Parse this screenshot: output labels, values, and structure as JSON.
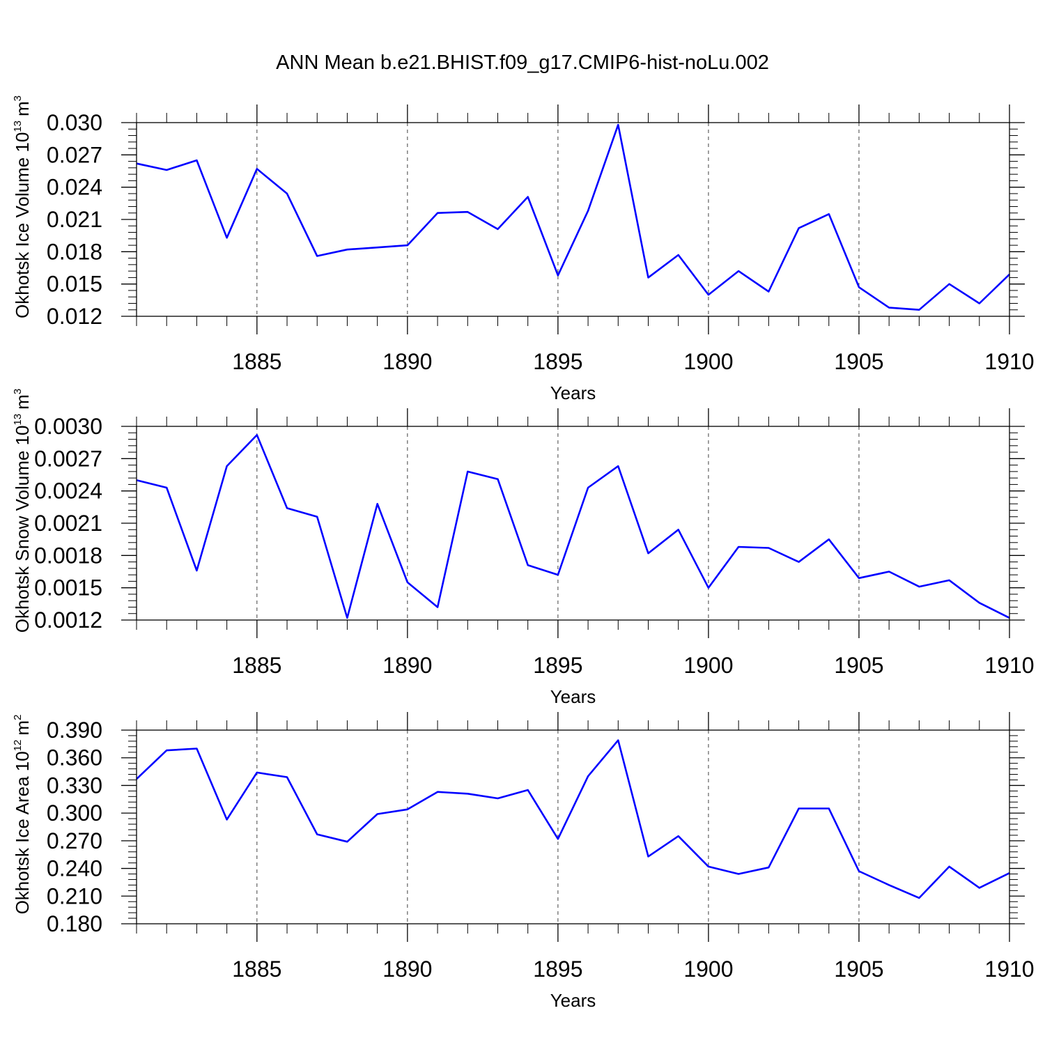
{
  "title": "ANN Mean b.e21.BHIST.f09_g17.CMIP6-hist-noLu.002",
  "chart_data": [
    {
      "type": "line",
      "xlabel": "Years",
      "ylabel": "Okhotsk Ice Volume 10",
      "ylabel_exp": "13",
      "ylabel_unit": "m",
      "ylabel_unit_exp": "3",
      "xlim": [
        1881,
        1910
      ],
      "ylim": [
        0.012,
        0.03
      ],
      "x_ticks": [
        "1885",
        "1890",
        "1895",
        "1900",
        "1905",
        "1910"
      ],
      "y_ticks": [
        "0.012",
        "0.015",
        "0.018",
        "0.021",
        "0.024",
        "0.027",
        "0.030"
      ],
      "grid": "dashed vertical at major x ticks",
      "color": "#0000ff",
      "x": [
        1881,
        1882,
        1883,
        1884,
        1885,
        1886,
        1887,
        1888,
        1889,
        1890,
        1891,
        1892,
        1893,
        1894,
        1895,
        1896,
        1897,
        1898,
        1899,
        1900,
        1901,
        1902,
        1903,
        1904,
        1905,
        1906,
        1907,
        1908,
        1909,
        1910
      ],
      "values": [
        0.0262,
        0.0256,
        0.0265,
        0.0193,
        0.0257,
        0.0234,
        0.0176,
        0.0182,
        0.0184,
        0.0186,
        0.0216,
        0.0217,
        0.0201,
        0.0231,
        0.0158,
        0.0218,
        0.0298,
        0.0156,
        0.0177,
        0.014,
        0.0162,
        0.0143,
        0.0202,
        0.0215,
        0.0147,
        0.0128,
        0.0126,
        0.015,
        0.0132,
        0.0159
      ]
    },
    {
      "type": "line",
      "xlabel": "Years",
      "ylabel": "Okhotsk Snow Volume 10",
      "ylabel_exp": "13",
      "ylabel_unit": "m",
      "ylabel_unit_exp": "3",
      "xlim": [
        1881,
        1910
      ],
      "ylim": [
        0.0012,
        0.003
      ],
      "x_ticks": [
        "1885",
        "1890",
        "1895",
        "1900",
        "1905",
        "1910"
      ],
      "y_ticks": [
        "0.0012",
        "0.0015",
        "0.0018",
        "0.0021",
        "0.0024",
        "0.0027",
        "0.0030"
      ],
      "grid": "dashed vertical at major x ticks",
      "color": "#0000ff",
      "x": [
        1881,
        1882,
        1883,
        1884,
        1885,
        1886,
        1887,
        1888,
        1889,
        1890,
        1891,
        1892,
        1893,
        1894,
        1895,
        1896,
        1897,
        1898,
        1899,
        1900,
        1901,
        1902,
        1903,
        1904,
        1905,
        1906,
        1907,
        1908,
        1909,
        1910
      ],
      "values": [
        0.0025,
        0.00243,
        0.00166,
        0.00263,
        0.00292,
        0.00224,
        0.00216,
        0.00122,
        0.00228,
        0.00155,
        0.00132,
        0.00258,
        0.00251,
        0.00171,
        0.00162,
        0.00243,
        0.00263,
        0.00182,
        0.00204,
        0.0015,
        0.00188,
        0.00187,
        0.00174,
        0.00195,
        0.00159,
        0.00165,
        0.00151,
        0.00157,
        0.00136,
        0.00122
      ]
    },
    {
      "type": "line",
      "xlabel": "Years",
      "ylabel": "Okhotsk Ice Area 10",
      "ylabel_exp": "12",
      "ylabel_unit": "m",
      "ylabel_unit_exp": "2",
      "xlim": [
        1881,
        1910
      ],
      "ylim": [
        0.18,
        0.39
      ],
      "x_ticks": [
        "1885",
        "1890",
        "1895",
        "1900",
        "1905",
        "1910"
      ],
      "y_ticks": [
        "0.180",
        "0.210",
        "0.240",
        "0.270",
        "0.300",
        "0.330",
        "0.360",
        "0.390"
      ],
      "grid": "dashed vertical at major x ticks",
      "color": "#0000ff",
      "x": [
        1881,
        1882,
        1883,
        1884,
        1885,
        1886,
        1887,
        1888,
        1889,
        1890,
        1891,
        1892,
        1893,
        1894,
        1895,
        1896,
        1897,
        1898,
        1899,
        1900,
        1901,
        1902,
        1903,
        1904,
        1905,
        1906,
        1907,
        1908,
        1909,
        1910
      ],
      "values": [
        0.337,
        0.368,
        0.37,
        0.293,
        0.344,
        0.339,
        0.277,
        0.269,
        0.299,
        0.304,
        0.323,
        0.321,
        0.316,
        0.325,
        0.272,
        0.34,
        0.379,
        0.253,
        0.275,
        0.242,
        0.234,
        0.241,
        0.305,
        0.305,
        0.237,
        0.222,
        0.208,
        0.242,
        0.219,
        0.235
      ]
    }
  ]
}
